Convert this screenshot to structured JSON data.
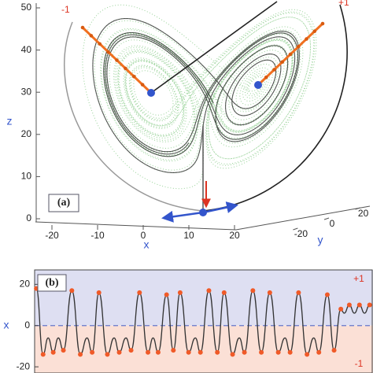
{
  "chart_data": [
    {
      "type": "attractor3d",
      "panel_label": "(a)",
      "xlabel": "x",
      "ylabel": "y",
      "zlabel": "z",
      "annotations": [
        "-1",
        "+1"
      ],
      "xlim": [
        -25,
        25
      ],
      "ylim": [
        -25,
        25
      ],
      "zlim": [
        0,
        51
      ],
      "xticks": [
        -20,
        -10,
        0,
        10,
        20
      ],
      "yticks": [
        -20,
        0,
        20
      ],
      "zticks": [
        0,
        10,
        20,
        30,
        40,
        50
      ]
    },
    {
      "type": "line",
      "panel_label": "(b)",
      "ylabel": "x",
      "annotations": [
        "+1",
        "-1"
      ],
      "xlim": [
        0,
        100
      ],
      "ylim": [
        -23,
        27
      ],
      "yticks": [
        -20,
        0,
        20
      ],
      "color_above": "#dedff2",
      "color_below": "#fbe0d6",
      "zero_line_color": "#6677cc",
      "marker_color": "#f05a28",
      "series": [
        {
          "color": "#333333",
          "x": [
            0.5,
            2.5,
            4,
            5.5,
            7,
            8.5,
            11,
            13.5,
            15.5,
            17,
            19,
            21.5,
            23.5,
            25,
            27,
            28.5,
            31,
            33.5,
            35,
            36.5,
            39,
            41,
            43,
            45.5,
            47.5,
            49,
            51.5,
            54,
            56,
            58.5,
            60.5,
            62,
            64.5,
            67,
            69.5,
            72,
            74,
            75.5,
            78,
            80.5,
            82.5,
            84,
            86.5,
            88.5,
            90.5,
            91.5,
            93,
            94.5,
            96,
            97.5,
            99
          ],
          "values": [
            18,
            -14,
            -6,
            -13,
            -6,
            -12,
            17,
            -14,
            -6,
            -13,
            16,
            -14,
            -6,
            -13,
            -6,
            -12,
            16,
            -13,
            -6,
            -13,
            15,
            -12,
            16,
            -13,
            -6,
            -13,
            17,
            -13,
            16,
            -14,
            -6,
            -13,
            17,
            -13,
            16,
            -13,
            -6,
            -13,
            16,
            -14,
            -6,
            -13,
            15,
            -12,
            8,
            6,
            10,
            6,
            10,
            6,
            10
          ]
        }
      ]
    }
  ]
}
